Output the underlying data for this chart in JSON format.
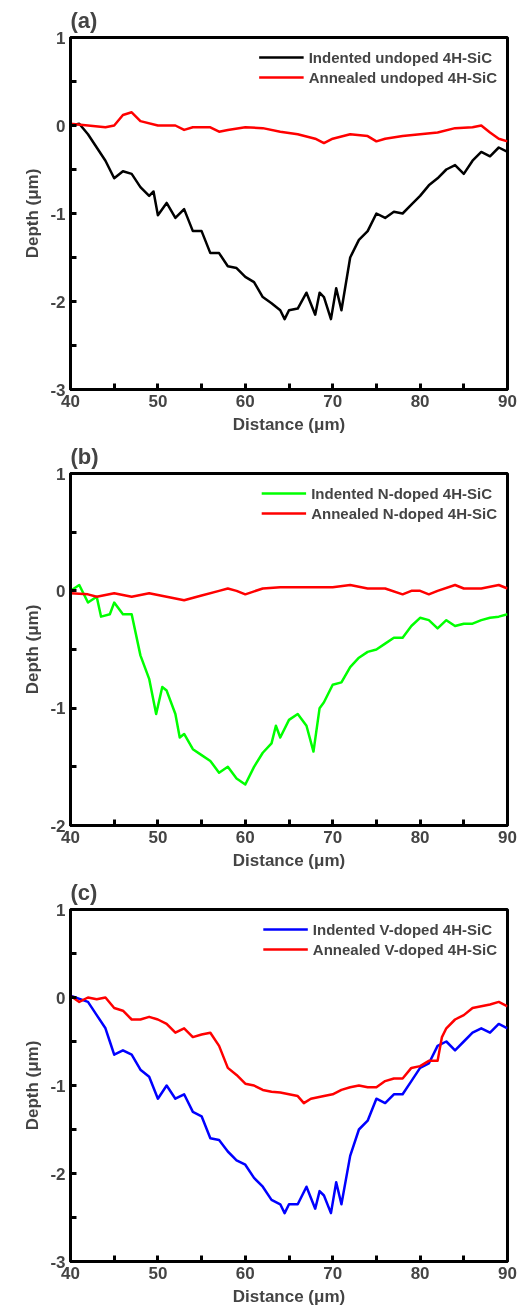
{
  "chart_data": [
    {
      "type": "line",
      "title": "(a)",
      "xlabel": "Distance (μm)",
      "ylabel": "Depth (μm)",
      "xlim": [
        40,
        90
      ],
      "ylim": [
        -3,
        1
      ],
      "xticks": [
        40,
        {
          "value": 45,
          "label": null
        },
        50,
        {
          "value": 55,
          "label": null
        },
        60,
        {
          "value": 65,
          "label": null
        },
        70,
        {
          "value": 75,
          "label": null
        },
        80,
        {
          "value": 85,
          "label": null
        },
        90
      ],
      "yticks": [
        -3,
        {
          "value": -2.5,
          "label": null
        },
        -2,
        {
          "value": -1.5,
          "label": null
        },
        -1,
        {
          "value": -0.5,
          "label": null
        },
        0,
        {
          "value": 0.5,
          "label": null
        },
        1
      ],
      "grid": false,
      "legend": "top right",
      "line_style": "solid",
      "marker": "none",
      "series": [
        {
          "name": "Indented undoped 4H-SiC",
          "color": "#000000",
          "x": [
            40,
            41,
            42,
            43,
            44,
            45,
            46,
            47,
            48,
            49,
            49.5,
            50,
            51,
            52,
            53,
            54,
            55,
            56,
            57,
            58,
            59,
            60,
            61,
            62,
            63,
            64,
            64.5,
            65,
            66,
            67,
            68,
            68.5,
            69,
            69.8,
            70.4,
            71,
            72,
            73,
            74,
            75,
            76,
            77,
            78,
            79,
            80,
            81,
            82,
            83,
            84,
            85,
            86,
            87,
            88,
            89,
            90
          ],
          "values": [
            0,
            0.02,
            -0.1,
            -0.25,
            -0.4,
            -0.6,
            -0.52,
            -0.55,
            -0.7,
            -0.8,
            -0.75,
            -1.02,
            -0.88,
            -1.05,
            -0.95,
            -1.2,
            -1.2,
            -1.45,
            -1.45,
            -1.6,
            -1.62,
            -1.72,
            -1.78,
            -1.95,
            -2.02,
            -2.1,
            -2.2,
            -2.1,
            -2.08,
            -1.9,
            -2.15,
            -1.9,
            -1.95,
            -2.2,
            -1.85,
            -2.1,
            -1.5,
            -1.3,
            -1.2,
            -1.0,
            -1.05,
            -0.98,
            -1.0,
            -0.9,
            -0.8,
            -0.68,
            -0.6,
            -0.5,
            -0.45,
            -0.55,
            -0.4,
            -0.3,
            -0.35,
            -0.25,
            -0.3
          ]
        },
        {
          "name": "Annealed undoped 4H-SiC",
          "color": "#ff0000",
          "x": [
            40,
            42,
            44,
            45,
            46,
            47,
            48,
            50,
            52,
            53,
            54,
            56,
            57,
            58,
            60,
            62,
            64,
            66,
            68,
            69,
            70,
            72,
            74,
            75,
            76,
            78,
            80,
            82,
            84,
            86,
            87,
            88,
            89,
            90
          ],
          "values": [
            0.02,
            0,
            -0.02,
            0,
            0.12,
            0.15,
            0.05,
            0,
            0,
            -0.05,
            -0.02,
            -0.02,
            -0.07,
            -0.05,
            -0.02,
            -0.03,
            -0.07,
            -0.1,
            -0.15,
            -0.2,
            -0.15,
            -0.1,
            -0.12,
            -0.18,
            -0.15,
            -0.12,
            -0.1,
            -0.08,
            -0.03,
            -0.02,
            0,
            -0.08,
            -0.15,
            -0.18
          ]
        }
      ]
    },
    {
      "type": "line",
      "title": "(b)",
      "xlabel": "Distance (μm)",
      "ylabel": "Depth (μm)",
      "xlim": [
        40,
        90
      ],
      "ylim": [
        -2,
        1
      ],
      "xticks": [
        40,
        {
          "value": 45,
          "label": null
        },
        50,
        {
          "value": 55,
          "label": null
        },
        60,
        {
          "value": 65,
          "label": null
        },
        70,
        {
          "value": 75,
          "label": null
        },
        80,
        {
          "value": 85,
          "label": null
        },
        90
      ],
      "yticks": [
        -2,
        {
          "value": -1.5,
          "label": null
        },
        -1,
        {
          "value": -0.5,
          "label": null
        },
        0,
        {
          "value": 0.5,
          "label": null
        },
        1
      ],
      "grid": false,
      "legend": "top right",
      "line_style": "solid",
      "marker": "none",
      "series": [
        {
          "name": "Indented N-doped 4H-SiC",
          "color": "#00ff00",
          "x": [
            40,
            41,
            42,
            43,
            43.5,
            44.5,
            45,
            46,
            47,
            48,
            49,
            49.8,
            50.5,
            51,
            52,
            52.5,
            53,
            54,
            55,
            56,
            57,
            58,
            59,
            60,
            61,
            62,
            63,
            63.5,
            64,
            65,
            66,
            67,
            67.8,
            68.5,
            69,
            70,
            71,
            72,
            73,
            74,
            75,
            76,
            77,
            78,
            79,
            80,
            81,
            82,
            83,
            84,
            85,
            86,
            87,
            88,
            89,
            90
          ],
          "values": [
            0,
            0.05,
            -0.1,
            -0.05,
            -0.22,
            -0.2,
            -0.1,
            -0.2,
            -0.2,
            -0.55,
            -0.75,
            -1.05,
            -0.82,
            -0.85,
            -1.05,
            -1.25,
            -1.22,
            -1.35,
            -1.4,
            -1.45,
            -1.55,
            -1.5,
            -1.6,
            -1.65,
            -1.5,
            -1.38,
            -1.3,
            -1.15,
            -1.25,
            -1.1,
            -1.05,
            -1.15,
            -1.37,
            -1.0,
            -0.95,
            -0.8,
            -0.78,
            -0.65,
            -0.57,
            -0.52,
            -0.5,
            -0.45,
            -0.4,
            -0.4,
            -0.3,
            -0.23,
            -0.25,
            -0.32,
            -0.25,
            -0.3,
            -0.28,
            -0.28,
            -0.25,
            -0.23,
            -0.22,
            -0.2
          ]
        },
        {
          "name": "Annealed N-doped 4H-SiC",
          "color": "#ff0000",
          "x": [
            40,
            42,
            43,
            45,
            47,
            49,
            51,
            53,
            55,
            57,
            58,
            59,
            60,
            62,
            64,
            66,
            68,
            70,
            72,
            74,
            76,
            78,
            79,
            80,
            81,
            82,
            84,
            85,
            87,
            89,
            90
          ],
          "values": [
            -0.02,
            -0.03,
            -0.05,
            -0.02,
            -0.05,
            -0.02,
            -0.05,
            -0.08,
            -0.04,
            0,
            0.02,
            0,
            -0.03,
            0.02,
            0.03,
            0.03,
            0.03,
            0.03,
            0.05,
            0.02,
            0.02,
            -0.03,
            0,
            0,
            -0.03,
            0,
            0.05,
            0.02,
            0.02,
            0.05,
            0.02
          ]
        }
      ]
    },
    {
      "type": "line",
      "title": "(c)",
      "xlabel": "Distance (μm)",
      "ylabel": "Depth (μm)",
      "xlim": [
        40,
        90
      ],
      "ylim": [
        -3,
        1
      ],
      "xticks": [
        40,
        {
          "value": 45,
          "label": null
        },
        50,
        {
          "value": 55,
          "label": null
        },
        60,
        {
          "value": 65,
          "label": null
        },
        70,
        {
          "value": 75,
          "label": null
        },
        80,
        {
          "value": 85,
          "label": null
        },
        90
      ],
      "yticks": [
        -3,
        {
          "value": -2.5,
          "label": null
        },
        -2,
        {
          "value": -1.5,
          "label": null
        },
        -1,
        {
          "value": -0.5,
          "label": null
        },
        0,
        {
          "value": 0.5,
          "label": null
        },
        1
      ],
      "grid": false,
      "legend": "top right",
      "line_style": "solid",
      "marker": "none",
      "series": [
        {
          "name": "Indented V-doped 4H-SiC",
          "color": "#0000ff",
          "x": [
            40,
            42,
            43,
            44,
            44.5,
            45,
            46,
            47,
            48,
            49,
            50,
            51,
            52,
            53,
            54,
            55,
            56,
            57,
            58,
            59,
            60,
            61,
            62,
            63,
            64,
            64.5,
            65,
            66,
            67,
            68,
            68.5,
            69,
            69.8,
            70.4,
            71,
            72,
            73,
            74,
            75,
            76,
            77,
            78,
            79,
            80,
            81,
            82,
            83,
            84,
            85,
            86,
            87,
            88,
            89,
            90
          ],
          "values": [
            0.02,
            -0.05,
            -0.2,
            -0.35,
            -0.5,
            -0.65,
            -0.6,
            -0.65,
            -0.82,
            -0.9,
            -1.15,
            -1.0,
            -1.15,
            -1.1,
            -1.3,
            -1.35,
            -1.6,
            -1.62,
            -1.75,
            -1.85,
            -1.9,
            -2.05,
            -2.15,
            -2.3,
            -2.35,
            -2.45,
            -2.35,
            -2.35,
            -2.15,
            -2.4,
            -2.2,
            -2.25,
            -2.45,
            -2.1,
            -2.35,
            -1.8,
            -1.5,
            -1.4,
            -1.15,
            -1.2,
            -1.1,
            -1.1,
            -0.95,
            -0.8,
            -0.75,
            -0.55,
            -0.5,
            -0.6,
            -0.5,
            -0.4,
            -0.35,
            -0.4,
            -0.3,
            -0.35
          ]
        },
        {
          "name": "Annealed V-doped 4H-SiC",
          "color": "#ff0000",
          "x": [
            40,
            41,
            42,
            43,
            44,
            45,
            46,
            47,
            48,
            49,
            50,
            51,
            52,
            53,
            54,
            55,
            56,
            57,
            58,
            59,
            60,
            61,
            62,
            63,
            64,
            65,
            66,
            66.7,
            67.5,
            69,
            70,
            71,
            72,
            73,
            74,
            75,
            76,
            77,
            78,
            79,
            80,
            81,
            82,
            82.5,
            83,
            84,
            85,
            86,
            87,
            88,
            89,
            90
          ],
          "values": [
            0.02,
            -0.05,
            0,
            -0.02,
            0,
            -0.12,
            -0.15,
            -0.25,
            -0.25,
            -0.22,
            -0.25,
            -0.3,
            -0.4,
            -0.35,
            -0.45,
            -0.42,
            -0.4,
            -0.55,
            -0.8,
            -0.88,
            -0.98,
            -1.0,
            -1.05,
            -1.07,
            -1.08,
            -1.1,
            -1.12,
            -1.2,
            -1.15,
            -1.12,
            -1.1,
            -1.05,
            -1.02,
            -1.0,
            -1.02,
            -1.02,
            -0.95,
            -0.92,
            -0.92,
            -0.8,
            -0.78,
            -0.72,
            -0.72,
            -0.45,
            -0.35,
            -0.25,
            -0.2,
            -0.12,
            -0.1,
            -0.08,
            -0.05,
            -0.1
          ]
        }
      ]
    }
  ]
}
